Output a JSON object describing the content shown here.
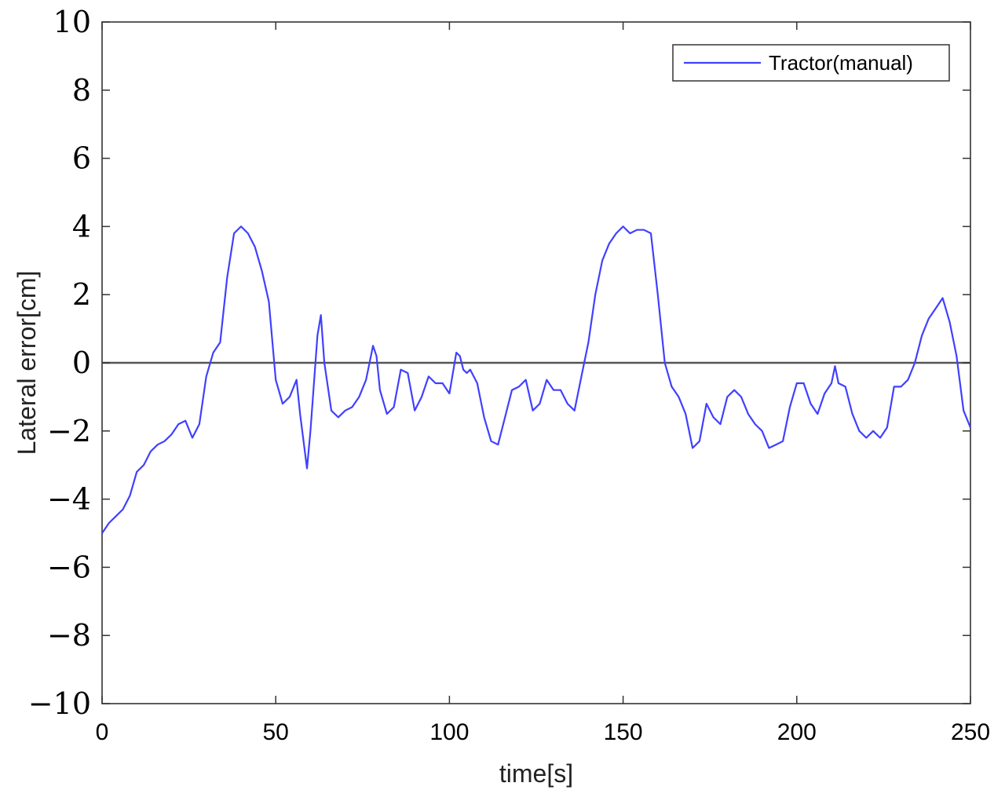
{
  "chart_data": {
    "type": "line",
    "title": "",
    "xlabel": "time[s]",
    "ylabel": "Lateral error[cm]",
    "xlim": [
      0,
      250
    ],
    "ylim": [
      -10,
      10
    ],
    "xticks": [
      0,
      50,
      100,
      150,
      200,
      250
    ],
    "yticks": [
      10,
      8,
      6,
      4,
      2,
      0,
      -2,
      -4,
      -6,
      -8,
      -10
    ],
    "xtick_labels": [
      "0",
      "50",
      "100",
      "150",
      "200",
      "250"
    ],
    "ytick_labels": [
      "10",
      "8",
      "6",
      "4",
      "2",
      "0",
      "−2",
      "−4",
      "−6",
      "−8",
      "−10"
    ],
    "grid": false,
    "reference_line": {
      "y": 0,
      "color": "#555555"
    },
    "legend": {
      "position": "top-right",
      "entries": [
        "Tractor(manual)"
      ]
    },
    "series": [
      {
        "name": "Tractor(manual)",
        "color": "#4040ff",
        "x": [
          0,
          2,
          4,
          6,
          8,
          10,
          12,
          14,
          16,
          18,
          20,
          22,
          24,
          26,
          28,
          30,
          32,
          34,
          36,
          38,
          40,
          42,
          44,
          46,
          48,
          50,
          52,
          54,
          56,
          57,
          59,
          60,
          62,
          63,
          64,
          66,
          68,
          70,
          72,
          74,
          76,
          78,
          79,
          80,
          82,
          84,
          86,
          88,
          90,
          92,
          94,
          96,
          98,
          100,
          102,
          103,
          104,
          105,
          106,
          108,
          110,
          112,
          114,
          116,
          118,
          120,
          122,
          124,
          126,
          128,
          130,
          132,
          134,
          136,
          138,
          140,
          142,
          144,
          146,
          148,
          150,
          152,
          154,
          156,
          158,
          160,
          162,
          164,
          166,
          168,
          170,
          172,
          174,
          176,
          178,
          180,
          182,
          184,
          186,
          188,
          190,
          192,
          194,
          196,
          198,
          200,
          202,
          204,
          206,
          208,
          210,
          211,
          212,
          214,
          216,
          218,
          220,
          222,
          224,
          226,
          228,
          230,
          232,
          234,
          236,
          238,
          240,
          242,
          244,
          246,
          248,
          250
        ],
        "values": [
          -5.0,
          -4.7,
          -4.5,
          -4.3,
          -3.9,
          -3.2,
          -3.0,
          -2.6,
          -2.4,
          -2.3,
          -2.1,
          -1.8,
          -1.7,
          -2.2,
          -1.8,
          -0.4,
          0.3,
          0.6,
          2.5,
          3.8,
          4.0,
          3.8,
          3.4,
          2.7,
          1.8,
          -0.5,
          -1.2,
          -1.0,
          -0.5,
          -1.5,
          -3.1,
          -2.0,
          0.8,
          1.4,
          0.0,
          -1.4,
          -1.6,
          -1.4,
          -1.3,
          -1.0,
          -0.5,
          0.5,
          0.2,
          -0.8,
          -1.5,
          -1.3,
          -0.2,
          -0.3,
          -1.4,
          -1.0,
          -0.4,
          -0.6,
          -0.6,
          -0.9,
          0.3,
          0.2,
          -0.2,
          -0.3,
          -0.2,
          -0.6,
          -1.6,
          -2.3,
          -2.4,
          -1.6,
          -0.8,
          -0.7,
          -0.5,
          -1.4,
          -1.2,
          -0.5,
          -0.8,
          -0.8,
          -1.2,
          -1.4,
          -0.4,
          0.6,
          2.0,
          3.0,
          3.5,
          3.8,
          4.0,
          3.8,
          3.9,
          3.9,
          3.8,
          2.0,
          0.0,
          -0.7,
          -1.0,
          -1.5,
          -2.5,
          -2.3,
          -1.2,
          -1.6,
          -1.8,
          -1.0,
          -0.8,
          -1.0,
          -1.5,
          -1.8,
          -2.0,
          -2.5,
          -2.4,
          -2.3,
          -1.3,
          -0.6,
          -0.6,
          -1.2,
          -1.5,
          -0.9,
          -0.6,
          -0.1,
          -0.6,
          -0.7,
          -1.5,
          -2.0,
          -2.2,
          -2.0,
          -2.2,
          -1.9,
          -0.7,
          -0.7,
          -0.5,
          0.0,
          0.8,
          1.3,
          1.6,
          1.9,
          1.2,
          0.2,
          -1.4,
          -1.9
        ]
      }
    ]
  }
}
